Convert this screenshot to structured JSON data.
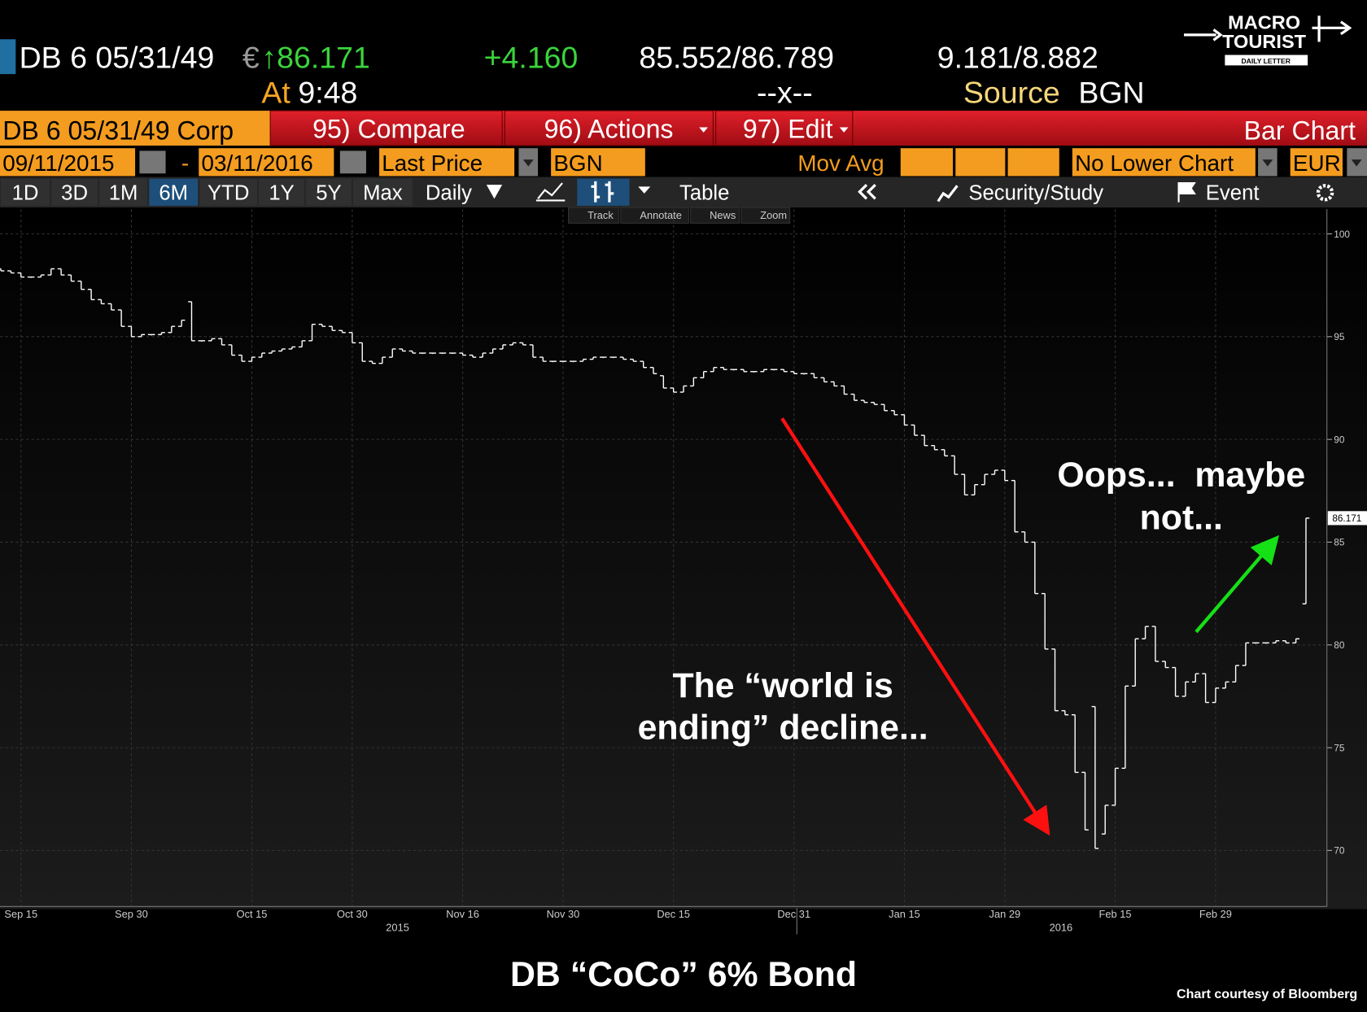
{
  "terminal": {
    "ticker": "DB 6 05/31/49",
    "currency": "€",
    "last": "↑86.171",
    "change": "+4.160",
    "bid_ask": "85.552/86.789",
    "yields": "9.181/8.882",
    "time_label": "At",
    "time": "9:48",
    "mid": "--x--",
    "source_label": "Source",
    "source": "BGN",
    "security": "DB 6 05/31/49 Corp",
    "compare": "95) Compare",
    "actions": "96) Actions",
    "edit": "97) Edit",
    "view": "Bar Chart",
    "start_date": "09/11/2015",
    "date_sep": "-",
    "end_date": "03/11/2016",
    "field": "Last Price",
    "pricing_source": "BGN",
    "study": "Mov Avg",
    "lower_chart": "No Lower Chart",
    "chart_currency": "EUR",
    "periods": [
      "1D",
      "3D",
      "1M",
      "6M",
      "YTD",
      "1Y",
      "5Y",
      "Max"
    ],
    "frequency": "Daily",
    "table": "Table",
    "security_study": "Security/Study",
    "event": "Event",
    "tools": [
      "Track",
      "Annotate",
      "News",
      "Zoom"
    ],
    "logo": [
      "MACRO",
      "TOURIST",
      "DAILY LETTER"
    ]
  },
  "chart_data": {
    "type": "ohlc",
    "title": "DB “CoCo” 6% Bond",
    "source": "Chart courtesy of Bloomberg",
    "annotations": [
      [
        "The “world is",
        "ending” decline..."
      ],
      [
        "Oops...  maybe",
        "not..."
      ]
    ],
    "year_labels": [
      "2015",
      "2016"
    ],
    "color": "#ffffff",
    "categories": [
      null,
      null,
      "Sep 15",
      null,
      null,
      null,
      null,
      null,
      null,
      null,
      null,
      null,
      null,
      "Sep 30",
      null,
      null,
      null,
      null,
      null,
      null,
      null,
      null,
      null,
      null,
      null,
      "Oct 15",
      null,
      null,
      null,
      null,
      null,
      null,
      null,
      null,
      null,
      "Oct 30",
      null,
      null,
      null,
      null,
      null,
      null,
      null,
      null,
      null,
      null,
      "Nov 16",
      null,
      null,
      null,
      null,
      null,
      null,
      null,
      null,
      null,
      "Nov 30",
      null,
      null,
      null,
      null,
      null,
      null,
      null,
      null,
      null,
      null,
      "Dec 15",
      null,
      null,
      null,
      null,
      null,
      null,
      null,
      null,
      null,
      null,
      null,
      "Dec 31",
      null,
      null,
      null,
      null,
      null,
      null,
      null,
      null,
      null,
      null,
      "Jan 15",
      null,
      null,
      null,
      null,
      null,
      null,
      null,
      null,
      null,
      "Jan 29",
      null,
      null,
      null,
      null,
      null,
      null,
      null,
      null,
      null,
      null,
      "Feb 15",
      null,
      null,
      null,
      null,
      null,
      null,
      null,
      null,
      null,
      "Feb 29",
      null,
      null,
      null,
      null,
      null,
      null,
      null,
      null,
      null
    ],
    "open": [
      98.3,
      98.2,
      98.1,
      97.9,
      97.9,
      98.0,
      98.3,
      98.0,
      97.7,
      97.3,
      96.8,
      96.6,
      96.3,
      95.5,
      95.0,
      95.1,
      95.1,
      95.2,
      95.5,
      96.7,
      94.8,
      94.8,
      94.9,
      94.6,
      94.1,
      93.8,
      94.0,
      94.2,
      94.3,
      94.4,
      94.5,
      94.8,
      95.6,
      95.5,
      95.3,
      95.2,
      94.7,
      93.8,
      93.7,
      94.0,
      94.4,
      94.3,
      94.2,
      94.2,
      94.2,
      94.2,
      94.2,
      94.1,
      94.0,
      94.2,
      94.4,
      94.6,
      94.7,
      94.6,
      94.0,
      93.8,
      93.8,
      93.8,
      93.8,
      93.9,
      94.0,
      94.0,
      94.0,
      93.9,
      93.8,
      93.5,
      93.1,
      92.5,
      92.3,
      92.6,
      93.0,
      93.3,
      93.5,
      93.4,
      93.4,
      93.3,
      93.3,
      93.4,
      93.4,
      93.3,
      93.2,
      93.2,
      93.0,
      92.8,
      92.6,
      92.2,
      91.9,
      91.8,
      91.7,
      91.4,
      91.2,
      90.7,
      90.2,
      89.7,
      89.5,
      89.2,
      88.3,
      87.3,
      87.8,
      88.3,
      88.5,
      88.0,
      85.5,
      85.0,
      82.5,
      79.8,
      76.8,
      76.6,
      73.8,
      77.0,
      70.8,
      72.2,
      74.0,
      78.0,
      80.3,
      80.9,
      79.2,
      78.9,
      77.5,
      78.2,
      78.6,
      77.2,
      77.9,
      78.2,
      79.0,
      80.1,
      80.1,
      80.1,
      80.2,
      80.1,
      82.0
    ],
    "close": [
      98.2,
      98.1,
      97.9,
      97.9,
      98.0,
      98.3,
      98.0,
      97.7,
      97.3,
      96.8,
      96.6,
      96.3,
      95.5,
      95.0,
      95.1,
      95.1,
      95.2,
      95.5,
      95.8,
      94.8,
      94.8,
      94.9,
      94.6,
      94.1,
      93.8,
      94.0,
      94.2,
      94.3,
      94.4,
      94.5,
      94.8,
      95.6,
      95.5,
      95.3,
      95.2,
      94.7,
      93.8,
      93.7,
      94.0,
      94.4,
      94.3,
      94.2,
      94.2,
      94.2,
      94.2,
      94.2,
      94.1,
      94.0,
      94.2,
      94.4,
      94.6,
      94.7,
      94.6,
      94.0,
      93.8,
      93.8,
      93.8,
      93.8,
      93.9,
      94.0,
      94.0,
      94.0,
      93.9,
      93.8,
      93.5,
      93.2,
      92.5,
      92.3,
      92.6,
      93.0,
      93.3,
      93.5,
      93.4,
      93.4,
      93.3,
      93.3,
      93.4,
      93.4,
      93.3,
      93.2,
      93.2,
      93.0,
      92.8,
      92.6,
      92.2,
      91.9,
      91.8,
      91.7,
      91.4,
      91.2,
      90.7,
      90.2,
      89.7,
      89.5,
      89.2,
      88.3,
      87.3,
      87.8,
      88.3,
      88.5,
      88.0,
      85.5,
      85.0,
      82.5,
      79.8,
      76.8,
      76.6,
      73.8,
      71.0,
      70.1,
      72.2,
      74.0,
      78.0,
      80.3,
      80.9,
      79.2,
      78.9,
      77.5,
      78.2,
      78.6,
      77.2,
      77.9,
      78.2,
      79.0,
      80.1,
      80.1,
      80.1,
      80.2,
      80.1,
      80.3,
      86.171
    ],
    "ylim": [
      67.4,
      101.2
    ],
    "yticks": [
      70,
      75,
      80,
      85,
      90,
      95,
      100
    ],
    "grid": true
  }
}
